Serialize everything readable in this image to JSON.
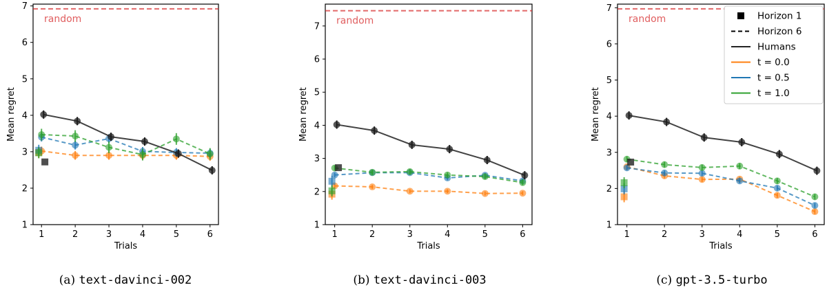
{
  "chart_data": [
    {
      "type": "line",
      "caption_prefix": "(a)",
      "caption_model": "text-davinci-002",
      "xlabel": "Trials",
      "ylabel": "Mean regret",
      "x_ticks": [
        1,
        2,
        3,
        4,
        5,
        6
      ],
      "y_ticks": [
        1,
        2,
        3,
        4,
        5,
        6,
        7
      ],
      "xlim": [
        0.75,
        6.25
      ],
      "ylim": [
        1,
        7.05
      ],
      "random_line": {
        "label": "random",
        "value": 6.92
      },
      "humans": {
        "x": [
          1,
          2,
          3,
          4,
          5,
          6
        ],
        "values": [
          4.02,
          3.84,
          3.41,
          3.28,
          2.95,
          2.49
        ]
      },
      "humans_horizon1": {
        "x": 1.1,
        "value": 2.72
      },
      "series": [
        {
          "t": "t = 0.0",
          "color": "#ff7f0e",
          "x": [
            1,
            2,
            3,
            4,
            5,
            6
          ],
          "values": [
            3.02,
            2.9,
            2.9,
            2.9,
            2.9,
            2.87
          ],
          "err": 0.12,
          "horizon1": 2.98
        },
        {
          "t": "t = 0.5",
          "color": "#1f77b4",
          "x": [
            1,
            2,
            3,
            4,
            5,
            6
          ],
          "values": [
            3.4,
            3.18,
            3.36,
            3.01,
            2.98,
            2.96
          ],
          "err": 0.12,
          "horizon1": 3.04
        },
        {
          "t": "t = 1.0",
          "color": "#2ca02c",
          "x": [
            1,
            2,
            3,
            4,
            5,
            6
          ],
          "values": [
            3.47,
            3.43,
            3.12,
            2.92,
            3.35,
            2.94
          ],
          "err": 0.16,
          "horizon1": 2.97
        }
      ]
    },
    {
      "type": "line",
      "caption_prefix": "(b)",
      "caption_model": "text-davinci-003",
      "xlabel": "Trials",
      "ylabel": "Mean regret",
      "x_ticks": [
        1,
        2,
        3,
        4,
        5,
        6
      ],
      "y_ticks": [
        1,
        2,
        3,
        4,
        5,
        6,
        7
      ],
      "xlim": [
        0.75,
        6.25
      ],
      "ylim": [
        1,
        7.66
      ],
      "random_line": {
        "label": "random",
        "value": 7.46
      },
      "humans": {
        "x": [
          1,
          2,
          3,
          4,
          5,
          6
        ],
        "values": [
          4.02,
          3.84,
          3.41,
          3.28,
          2.95,
          2.49
        ]
      },
      "humans_horizon1": {
        "x": 1.1,
        "value": 2.72
      },
      "series": [
        {
          "t": "t = 0.0",
          "color": "#ff7f0e",
          "x": [
            1,
            2,
            3,
            4,
            5,
            6
          ],
          "values": [
            2.17,
            2.14,
            2.01,
            2.01,
            1.94,
            1.95
          ],
          "err": 0.06,
          "horizon1": 1.92
        },
        {
          "t": "t = 0.5",
          "color": "#1f77b4",
          "x": [
            1,
            2,
            3,
            4,
            5,
            6
          ],
          "values": [
            2.5,
            2.57,
            2.57,
            2.41,
            2.49,
            2.32
          ],
          "err": 0.07,
          "horizon1": 2.31
        },
        {
          "t": "t = 1.0",
          "color": "#2ca02c",
          "x": [
            1,
            2,
            3,
            4,
            5,
            6
          ],
          "values": [
            2.71,
            2.58,
            2.6,
            2.5,
            2.45,
            2.27
          ],
          "err": 0.08,
          "horizon1": 2.02
        }
      ]
    },
    {
      "type": "line",
      "caption_prefix": "(c)",
      "caption_model": "gpt-3.5-turbo",
      "xlabel": "Trials",
      "ylabel": "Mean regret",
      "x_ticks": [
        1,
        2,
        3,
        4,
        5,
        6
      ],
      "y_ticks": [
        1,
        2,
        3,
        4,
        5,
        6,
        7
      ],
      "xlim": [
        0.75,
        6.25
      ],
      "ylim": [
        1,
        7.1
      ],
      "random_line": {
        "label": "random",
        "value": 6.97
      },
      "humans": {
        "x": [
          1,
          2,
          3,
          4,
          5,
          6
        ],
        "values": [
          4.02,
          3.84,
          3.41,
          3.28,
          2.95,
          2.49
        ]
      },
      "humans_horizon1": {
        "x": 1.1,
        "value": 2.73
      },
      "series": [
        {
          "t": "t = 0.0",
          "color": "#ff7f0e",
          "x": [
            1,
            2,
            3,
            4,
            5,
            6
          ],
          "values": [
            2.6,
            2.35,
            2.25,
            2.26,
            1.81,
            1.36
          ],
          "err": 0.07,
          "horizon1": 1.77
        },
        {
          "t": "t = 0.5",
          "color": "#1f77b4",
          "x": [
            1,
            2,
            3,
            4,
            5,
            6
          ],
          "values": [
            2.57,
            2.43,
            2.42,
            2.21,
            2.01,
            1.53
          ],
          "err": 0.07,
          "horizon1": 1.99
        },
        {
          "t": "t = 1.0",
          "color": "#2ca02c",
          "x": [
            1,
            2,
            3,
            4,
            5,
            6
          ],
          "values": [
            2.81,
            2.66,
            2.58,
            2.62,
            2.21,
            1.77
          ],
          "err": 0.08,
          "horizon1": 2.16
        }
      ]
    }
  ],
  "legend": {
    "placement": "top-right of panel (c)",
    "items": [
      {
        "label": "Horizon 1",
        "style": "square-marker"
      },
      {
        "label": "Horizon 6",
        "style": "dashed-line"
      },
      {
        "label": "Humans",
        "style": "solid-line"
      },
      {
        "label": "t = 0.0",
        "style": "color-line",
        "color": "#ff7f0e"
      },
      {
        "label": "t = 0.5",
        "style": "color-line",
        "color": "#1f77b4"
      },
      {
        "label": "t = 1.0",
        "style": "color-line",
        "color": "#2ca02c"
      }
    ]
  },
  "colors": {
    "random": "#d62728",
    "humans": "#222222"
  }
}
